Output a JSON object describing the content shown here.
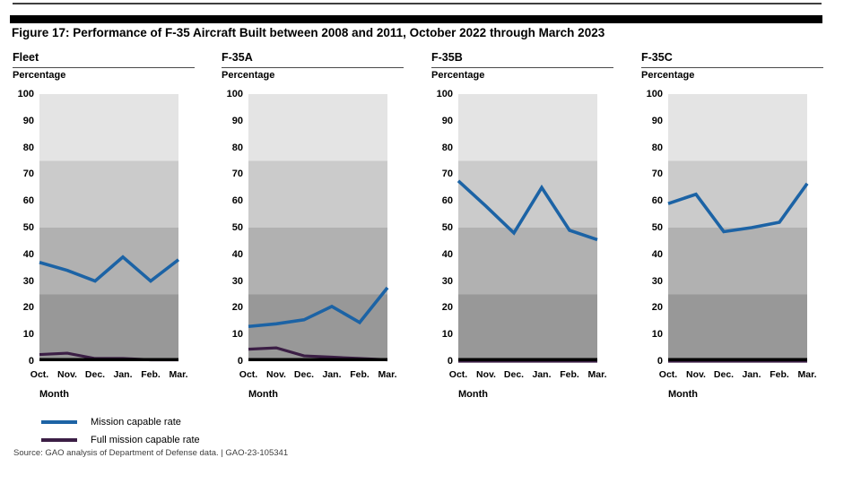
{
  "page": {
    "title": "Figure 17: Performance of F-35 Aircraft Built between 2008 and 2011, October 2022 through March 2023",
    "source_line": "Source: GAO analysis of Department of Defense data.  |  GAO-23-105341"
  },
  "legend": [
    {
      "label": "Mission capable rate",
      "color": "#1c63a5"
    },
    {
      "label": "Full mission capable rate",
      "color": "#3b1e45"
    }
  ],
  "colors": {
    "mission_capable_line": "#1c63a5",
    "full_mission_capable_line": "#3b1e45",
    "axis_line": "#000000",
    "bands_bottom_to_top": [
      "#989898",
      "#b1b1b1",
      "#cbcbcb",
      "#e4e4e4"
    ]
  },
  "chart_data": [
    {
      "type": "line",
      "title": "Fleet",
      "ylabel": "Percentage",
      "xlabel": "Month",
      "categories": [
        "Oct.",
        "Nov.",
        "Dec.",
        "Jan.",
        "Feb.",
        "Mar."
      ],
      "ylim": [
        0,
        100
      ],
      "ytick_step": 10,
      "grid": "shaded-bands-every-25",
      "legend_position": "below-figure",
      "series": [
        {
          "name": "Mission capable rate",
          "values": [
            37,
            34,
            30,
            39,
            30,
            38
          ]
        },
        {
          "name": "Full mission capable rate",
          "values": [
            2.5,
            3,
            1,
            1,
            0.5,
            0.5
          ]
        }
      ]
    },
    {
      "type": "line",
      "title": "F-35A",
      "ylabel": "Percentage",
      "xlabel": "Month",
      "categories": [
        "Oct.",
        "Nov.",
        "Dec.",
        "Jan.",
        "Feb.",
        "Mar."
      ],
      "ylim": [
        0,
        100
      ],
      "ytick_step": 10,
      "grid": "shaded-bands-every-25",
      "legend_position": "below-figure",
      "series": [
        {
          "name": "Mission capable rate",
          "values": [
            13,
            14,
            15.5,
            20.5,
            14.5,
            27.5
          ]
        },
        {
          "name": "Full mission capable rate",
          "values": [
            4.5,
            5,
            2,
            1.5,
            1,
            0.5
          ]
        }
      ]
    },
    {
      "type": "line",
      "title": "F-35B",
      "ylabel": "Percentage",
      "xlabel": "Month",
      "categories": [
        "Oct.",
        "Nov.",
        "Dec.",
        "Jan.",
        "Feb.",
        "Mar."
      ],
      "ylim": [
        0,
        100
      ],
      "ytick_step": 10,
      "grid": "shaded-bands-every-25",
      "legend_position": "below-figure",
      "series": [
        {
          "name": "Mission capable rate",
          "values": [
            67.5,
            58,
            48,
            65,
            49,
            45.5
          ]
        },
        {
          "name": "Full mission capable rate",
          "values": [
            0,
            0,
            0,
            0,
            0,
            0
          ]
        }
      ]
    },
    {
      "type": "line",
      "title": "F-35C",
      "ylabel": "Percentage",
      "xlabel": "Month",
      "categories": [
        "Oct.",
        "Nov.",
        "Dec.",
        "Jan.",
        "Feb.",
        "Mar."
      ],
      "ylim": [
        0,
        100
      ],
      "ytick_step": 10,
      "grid": "shaded-bands-every-25",
      "legend_position": "below-figure",
      "series": [
        {
          "name": "Mission capable rate",
          "values": [
            59,
            62.5,
            48.5,
            50,
            52,
            66.5
          ]
        },
        {
          "name": "Full mission capable rate",
          "values": [
            0,
            0,
            0,
            0,
            0,
            0
          ]
        }
      ]
    }
  ]
}
